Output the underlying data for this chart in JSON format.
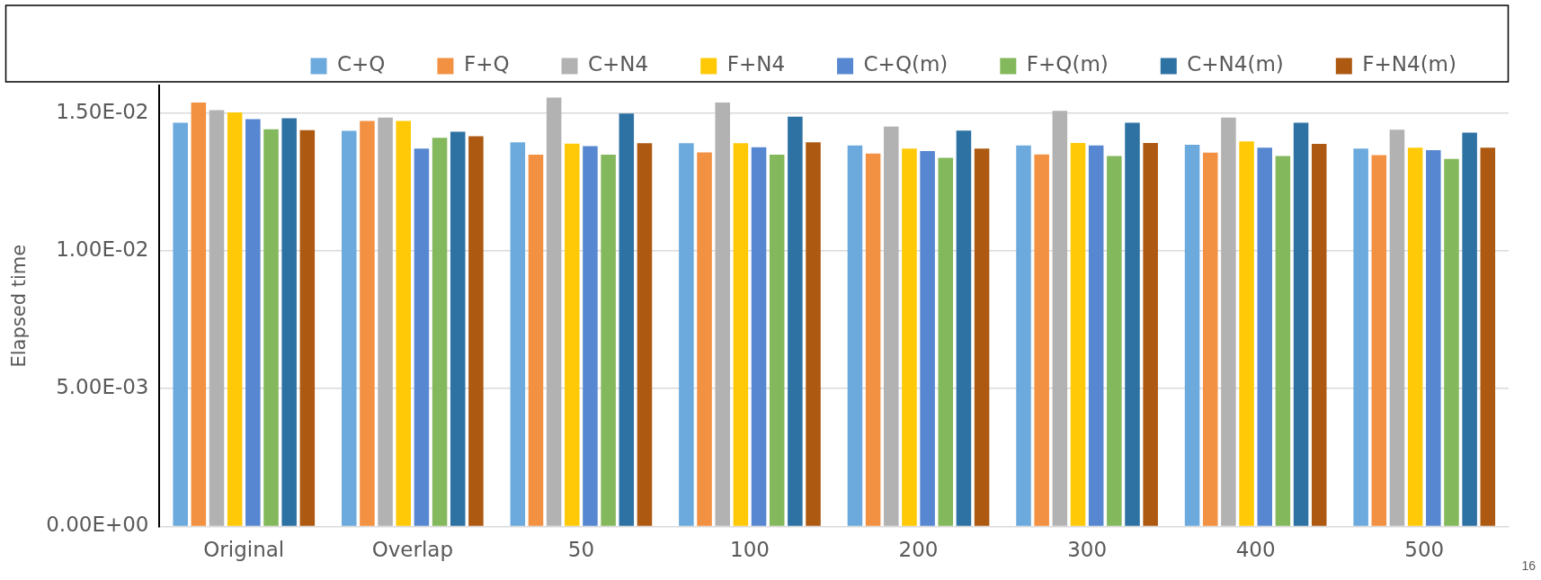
{
  "chart_data": {
    "type": "bar",
    "ylabel": "Elapsed time",
    "categories": [
      "Original",
      "Overlap",
      "50",
      "100",
      "200",
      "300",
      "400",
      "500"
    ],
    "series": [
      {
        "name": "C+Q",
        "color": "#6caadd",
        "values": [
          0.01465,
          0.01435,
          0.01394,
          0.0139,
          0.01382,
          0.01382,
          0.01385,
          0.01371
        ]
      },
      {
        "name": "F+Q",
        "color": "#f39143",
        "values": [
          0.01538,
          0.01471,
          0.01349,
          0.01357,
          0.01353,
          0.0135,
          0.01356,
          0.01347
        ]
      },
      {
        "name": "C+N4",
        "color": "#b2b2b2",
        "values": [
          0.0151,
          0.01483,
          0.01556,
          0.01538,
          0.01451,
          0.01508,
          0.01483,
          0.01439
        ]
      },
      {
        "name": "F+N4",
        "color": "#ffc907",
        "values": [
          0.01502,
          0.01471,
          0.01389,
          0.0139,
          0.01371,
          0.01391,
          0.01397,
          0.01374
        ]
      },
      {
        "name": "C+Q(m)",
        "color": "#5687d0",
        "values": [
          0.01478,
          0.01371,
          0.0138,
          0.01376,
          0.01362,
          0.01382,
          0.01374,
          0.01365
        ]
      },
      {
        "name": "F+Q(m)",
        "color": "#84b85d",
        "values": [
          0.01441,
          0.0141,
          0.01349,
          0.01349,
          0.01337,
          0.01344,
          0.01344,
          0.01333
        ]
      },
      {
        "name": "C+N4(m)",
        "color": "#2e72a4",
        "values": [
          0.01481,
          0.01432,
          0.01498,
          0.01487,
          0.01436,
          0.01465,
          0.01465,
          0.01429
        ]
      },
      {
        "name": "F+N4(m)",
        "color": "#ad5911",
        "values": [
          0.01438,
          0.01416,
          0.0139,
          0.01394,
          0.01371,
          0.01391,
          0.01388,
          0.01374
        ]
      }
    ],
    "ylim": [
      0,
      0.016
    ],
    "yticks": [
      {
        "value": 0,
        "label": "0.00E+00"
      },
      {
        "value": 0.005,
        "label": "5.00E-03"
      },
      {
        "value": 0.01,
        "label": "1.00E-02"
      },
      {
        "value": 0.015,
        "label": "1.50E-02"
      }
    ],
    "grid": "y",
    "legend": "top",
    "annotations": [
      "16"
    ]
  }
}
